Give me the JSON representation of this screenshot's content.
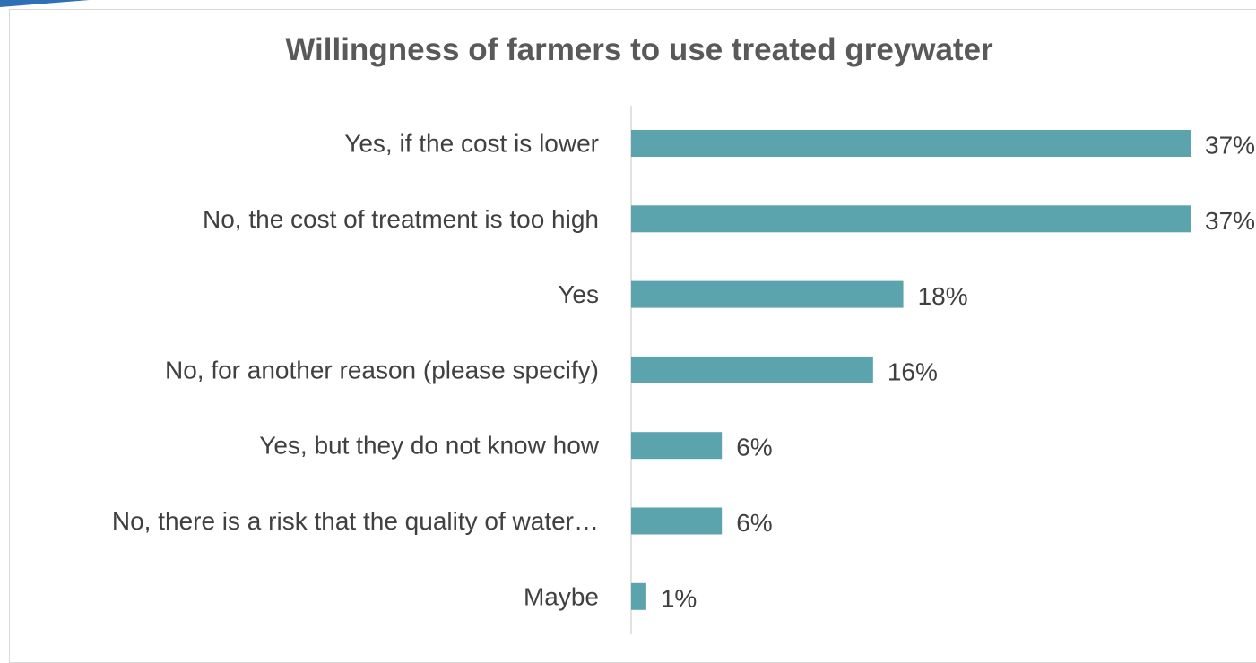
{
  "chart_data": {
    "type": "bar",
    "orientation": "horizontal",
    "title": "Willingness of farmers to use treated greywater",
    "categories": [
      "Yes, if the cost is lower",
      "No, the cost of treatment is too high",
      "Yes",
      "No, for another reason (please specify)",
      "Yes, but they do not know how",
      "No, there is a risk that the quality of water…",
      "Maybe"
    ],
    "values": [
      37,
      37,
      18,
      16,
      6,
      6,
      1
    ],
    "value_labels": [
      "37%",
      "37%",
      "18%",
      "16%",
      "6%",
      "6%",
      "1%"
    ],
    "unit": "%",
    "xlim": [
      0,
      37
    ],
    "grid": false,
    "legend": "none",
    "bar_color": "#5ba3ad",
    "text_color": "#404040",
    "title_color": "#595959",
    "axis_color": "#d9d9d9"
  }
}
